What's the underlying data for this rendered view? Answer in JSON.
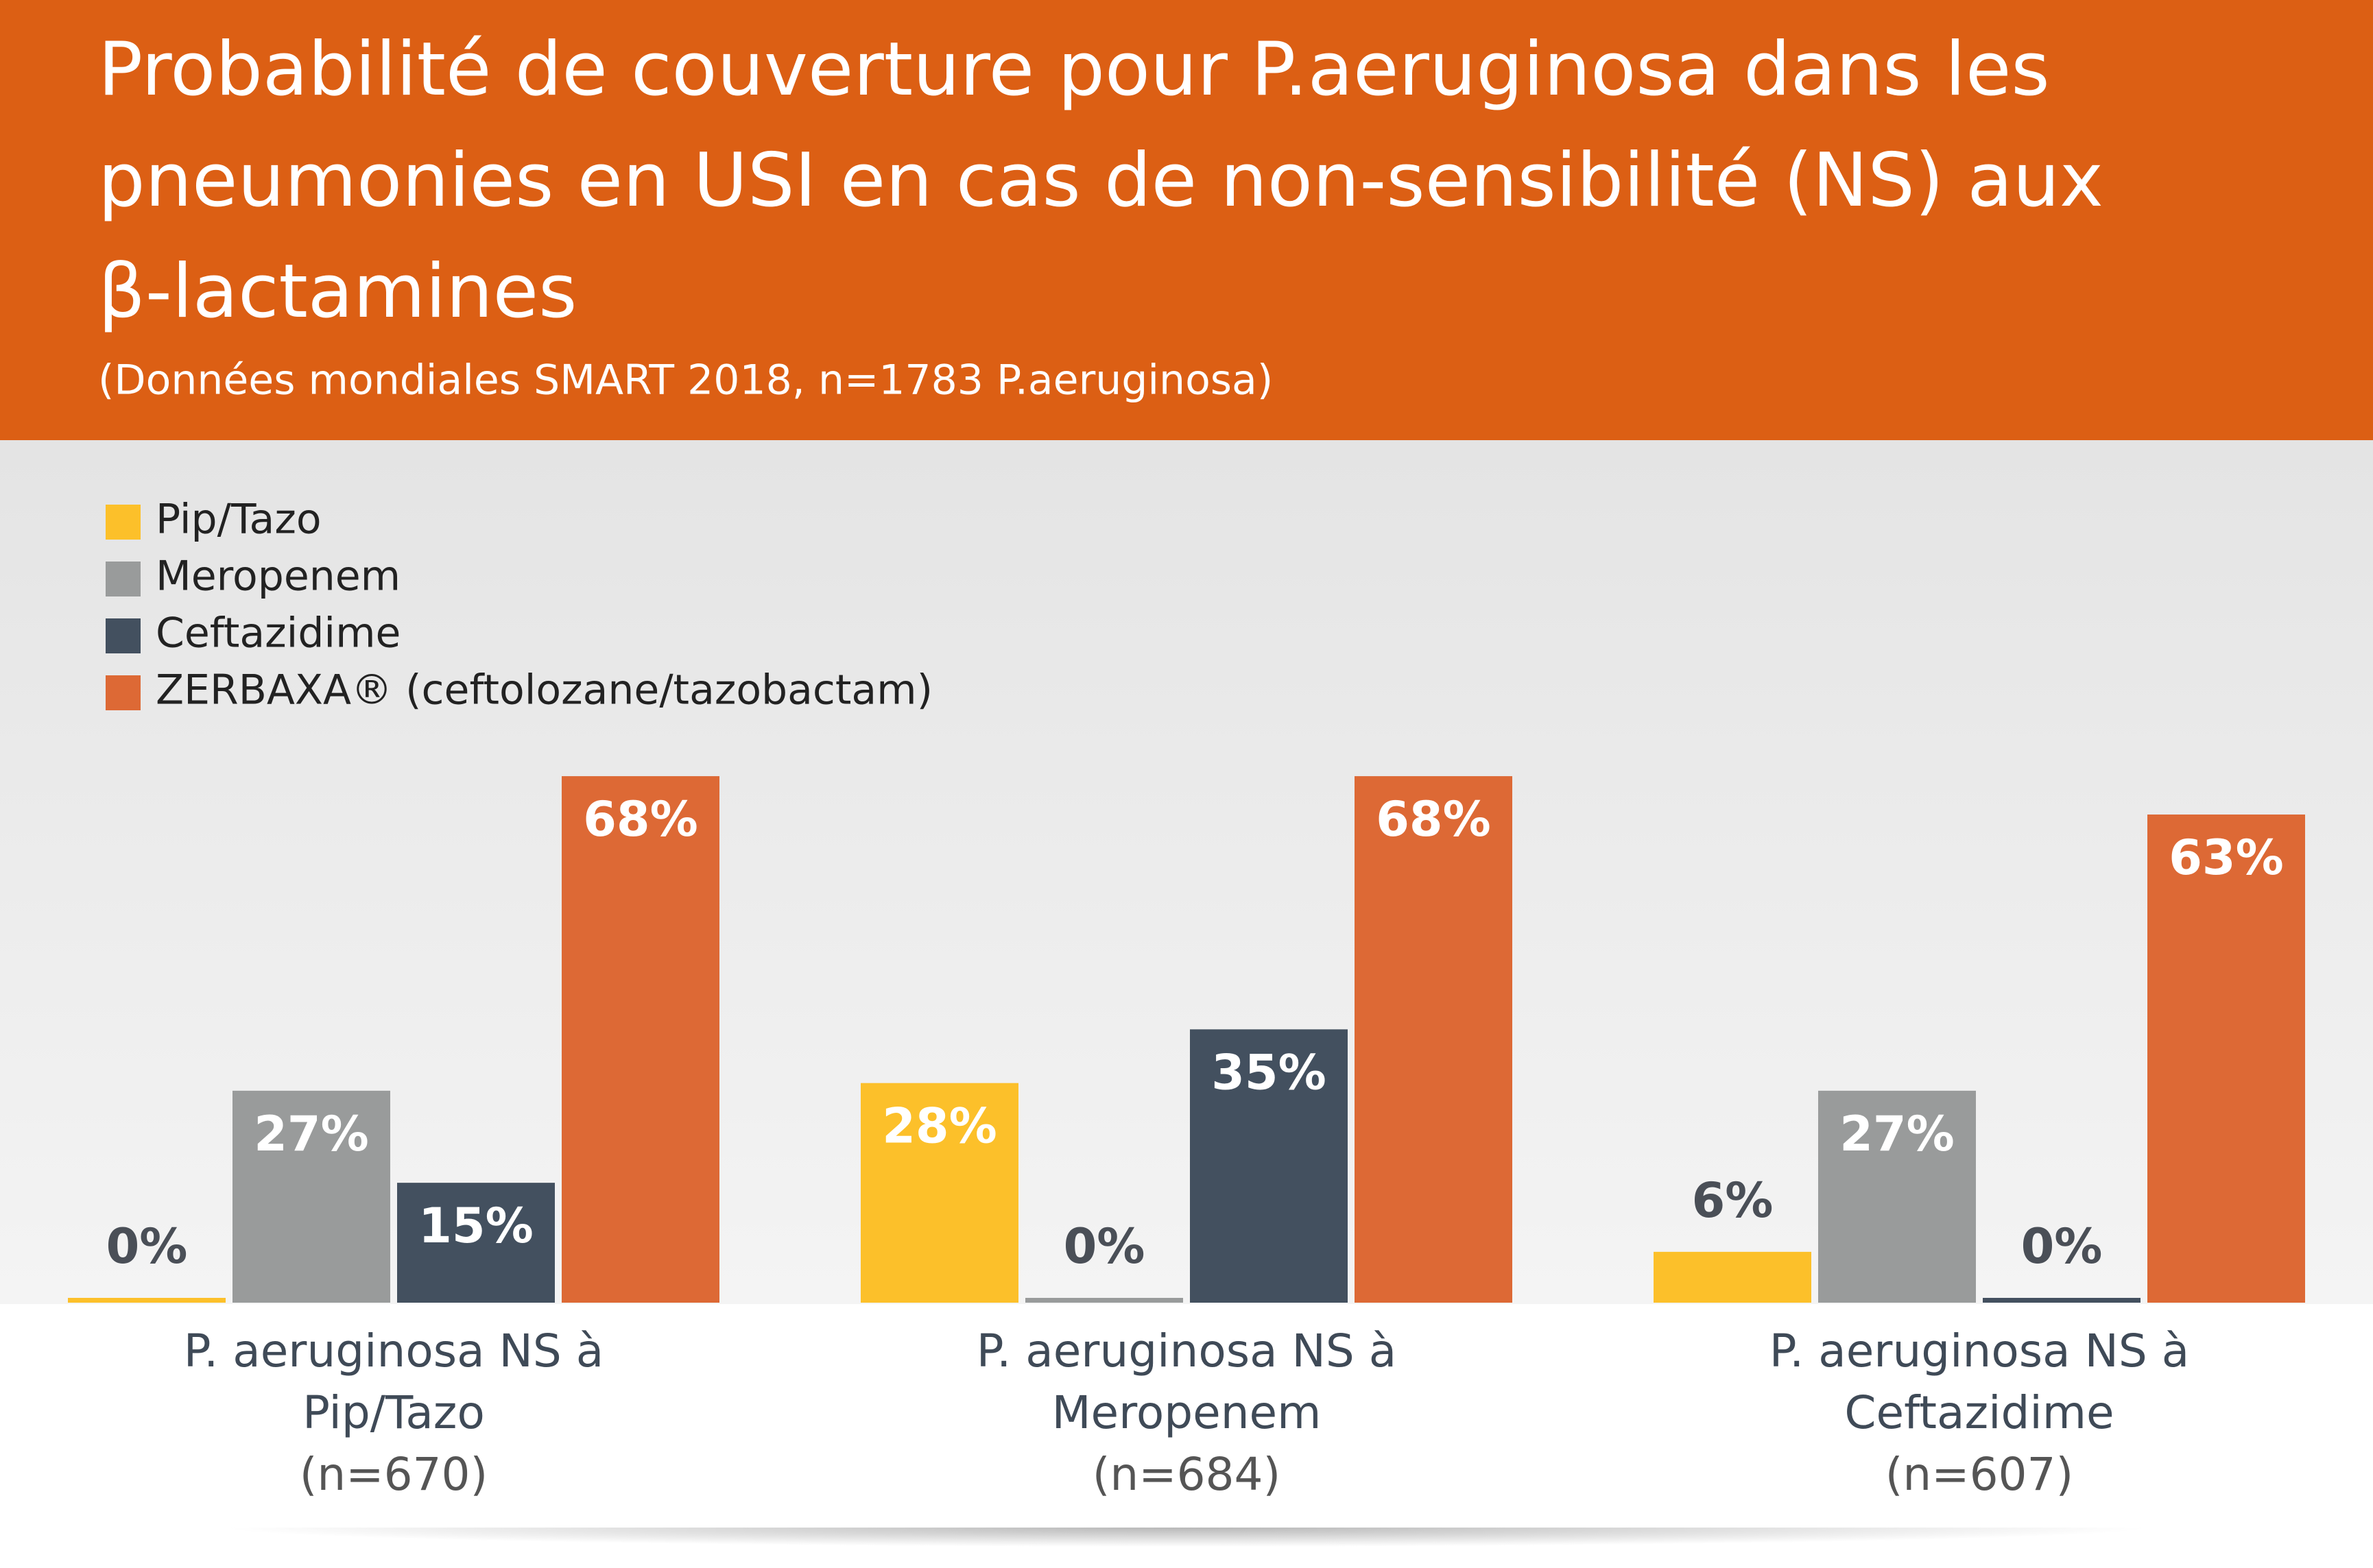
{
  "chart_data": {
    "type": "bar",
    "title": [
      "Probabilité de couverture pour P.aeruginosa dans les",
      "pneumonies en USI en cas de non-sensibilité (NS) aux",
      "β-lactamines"
    ],
    "subtitle": "(Données mondiales SMART 2018, n=1783 P.aeruginosa)",
    "categories": [
      [
        "P. aeruginosa NS à",
        "Pip/Tazo",
        "(n=670)"
      ],
      [
        "P. aeruginosa NS à",
        "Meropenem",
        "(n=684)"
      ],
      [
        "P. aeruginosa NS à",
        "Ceftazidime",
        "(n=607)"
      ]
    ],
    "series": [
      {
        "name": "Pip/Tazo",
        "color": "#fcc02a",
        "values": [
          0,
          28,
          6
        ],
        "value_labels": [
          "0%",
          "28%",
          "6%"
        ]
      },
      {
        "name": "Meropenem",
        "color": "#999b9b",
        "values": [
          27,
          0,
          27
        ],
        "value_labels": [
          "27%",
          "0%",
          "27%"
        ]
      },
      {
        "name": "Ceftazidime",
        "color": "#43505f",
        "values": [
          15,
          35,
          0
        ],
        "value_labels": [
          "15%",
          "35%",
          "0%"
        ]
      },
      {
        "name": "ZERBAXA® (ceftolozane/tazobactam)",
        "color": "#dd6935",
        "values": [
          68,
          68,
          63
        ],
        "value_labels": [
          "68%",
          "68%",
          "63%"
        ]
      }
    ],
    "legend": "top-left"
  }
}
